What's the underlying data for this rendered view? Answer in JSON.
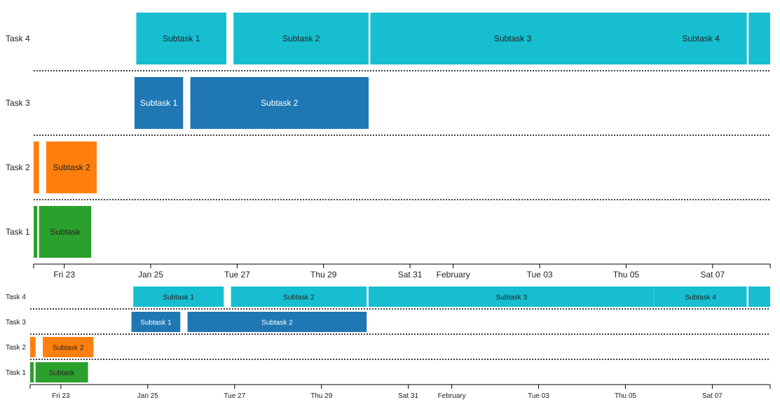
{
  "chart_data": {
    "type": "gantt",
    "x_axis_type": "date",
    "xlim": [
      "2018-01-22T07:00",
      "2018-02-08T08:00"
    ],
    "ticks": [
      {
        "date": "2018-01-23",
        "label": "Fri 23"
      },
      {
        "date": "2018-01-25",
        "label": "Jan 25"
      },
      {
        "date": "2018-01-27",
        "label": "Tue 27"
      },
      {
        "date": "2018-01-29",
        "label": "Thu 29"
      },
      {
        "date": "2018-01-31",
        "label": "Sat 31"
      },
      {
        "date": "2018-02-01",
        "label": "February"
      },
      {
        "date": "2018-02-03",
        "label": "Tue 03"
      },
      {
        "date": "2018-02-05",
        "label": "Thu 05"
      },
      {
        "date": "2018-02-07",
        "label": "Sat 07"
      }
    ],
    "colors": {
      "Task 1": "#2ca02c",
      "Task 2": "#ff7f0e",
      "Task 3": "#1f77b4",
      "Task 4": "#17becf"
    },
    "tasks": [
      {
        "name": "Task 4",
        "subtasks": [
          {
            "label": "Subtask 1",
            "start": "2018-01-24T16:00",
            "end": "2018-01-26T18:00"
          },
          {
            "label": "Subtask 2",
            "start": "2018-01-26T22:00",
            "end": "2018-01-30T01:00"
          },
          {
            "label": "Subtask 3",
            "start": "2018-01-30T02:00",
            "end": "2018-02-05T16:00"
          },
          {
            "label": "Subtask 4",
            "start": "2018-02-05T16:00",
            "end": "2018-02-07T19:00"
          },
          {
            "label": "",
            "start": "2018-02-07T20:00",
            "end": "2018-02-08T08:00"
          }
        ]
      },
      {
        "name": "Task 3",
        "subtasks": [
          {
            "label": "Subtask 1",
            "start": "2018-01-24T15:00",
            "end": "2018-01-25T18:00"
          },
          {
            "label": "Subtask 2",
            "start": "2018-01-25T22:00",
            "end": "2018-01-30T01:00"
          }
        ]
      },
      {
        "name": "Task 2",
        "subtasks": [
          {
            "label": "",
            "start": "2018-01-22T07:00",
            "end": "2018-01-22T10:00"
          },
          {
            "label": "Subtask 2",
            "start": "2018-01-22T14:00",
            "end": "2018-01-23T18:00"
          }
        ]
      },
      {
        "name": "Task 1",
        "subtasks": [
          {
            "label": "",
            "start": "2018-01-22T07:00",
            "end": "2018-01-22T09:00"
          },
          {
            "label": "Subtask",
            "start": "2018-01-22T10:00",
            "end": "2018-01-23T15:00"
          }
        ]
      }
    ]
  }
}
